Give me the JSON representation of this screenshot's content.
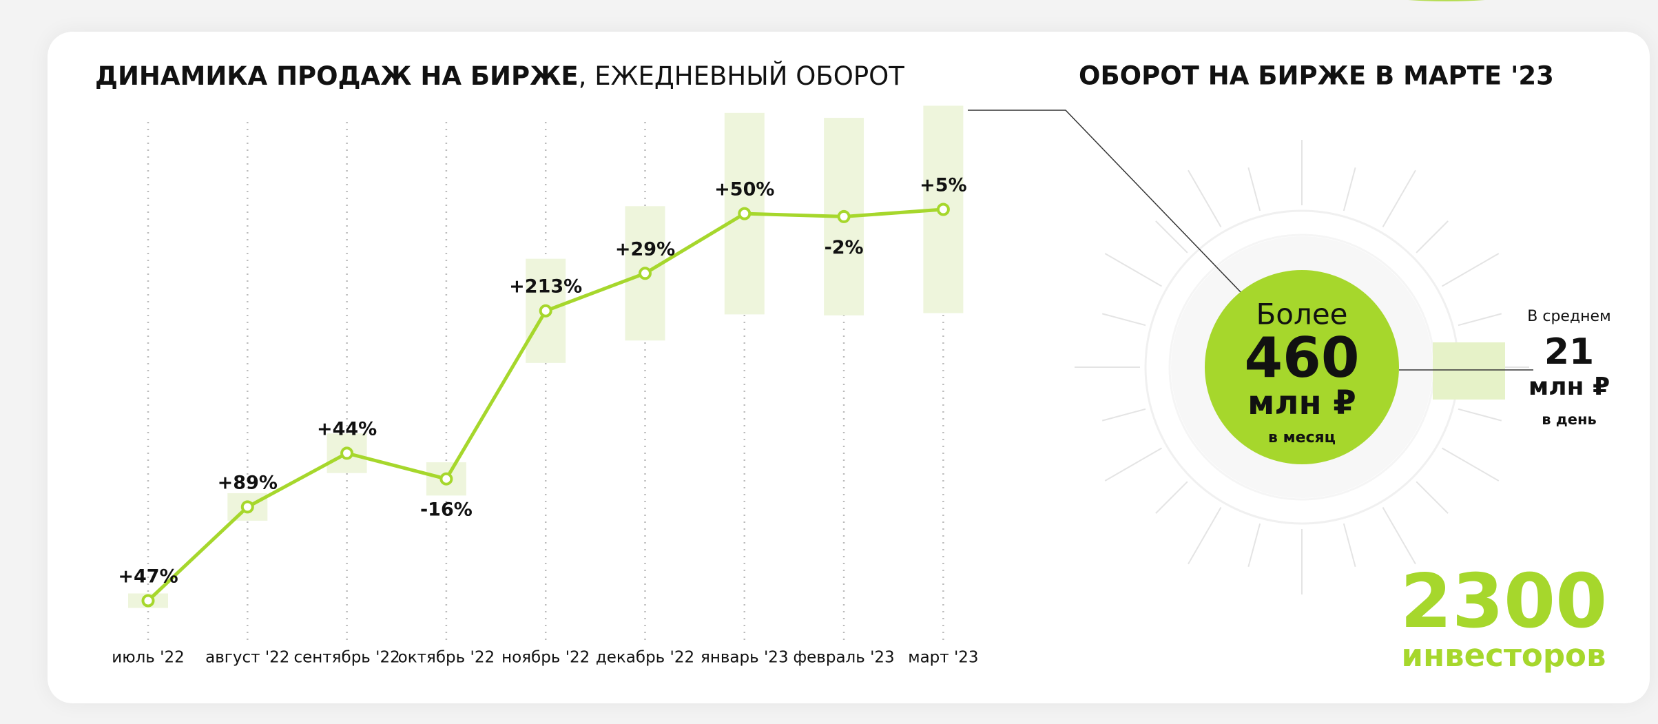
{
  "chart_data": {
    "type": "line",
    "title": "ДИНАМИКА ПРОДАЖ НА БИРЖЕ",
    "subtitle": ", ЕЖЕДНЕВНЫЙ ОБОРОТ",
    "categories": [
      "июль '22",
      "август '22",
      "сентябрь '22",
      "октябрь '22",
      "ноябрь '22",
      "декабрь '22",
      "январь '23",
      "февраль '23",
      "март '23"
    ],
    "values": [
      47,
      89,
      44,
      -16,
      213,
      29,
      50,
      -2,
      5
    ],
    "value_labels": [
      "+47%",
      "+89%",
      "+44%",
      "-16%",
      "+213%",
      "+29%",
      "+50%",
      "-2%",
      "+5%"
    ],
    "color": "#a6d72c"
  },
  "summary": {
    "title": "ОБОРОТ НА БИРЖЕ В МАРТЕ '23",
    "month_prefix": "Более",
    "month_value": "460",
    "month_unit": "млн ₽",
    "month_suffix": "в месяц",
    "day_prefix": "В среднем",
    "day_value": "21",
    "day_unit": "млн ₽",
    "day_suffix": "в день",
    "investors_value": "2300",
    "investors_label": "инвесторов"
  }
}
